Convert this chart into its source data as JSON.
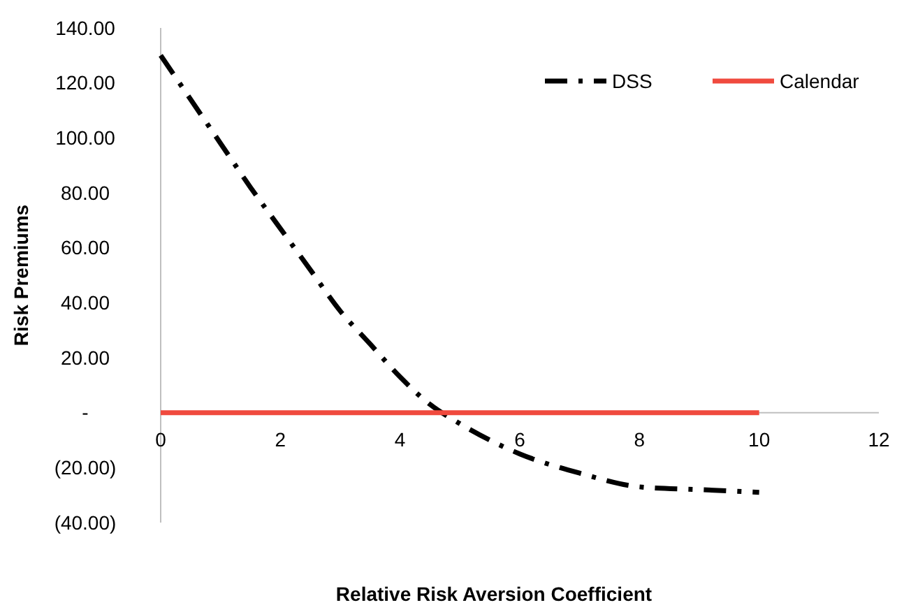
{
  "chart_data": {
    "type": "line",
    "xlabel": "Relative Risk Aversion Coefficient",
    "ylabel": "Risk Premiums",
    "xlim": [
      0,
      12
    ],
    "xticks": [
      0,
      2,
      4,
      6,
      8,
      10,
      12
    ],
    "ylim": [
      -40,
      140
    ],
    "yticks": [
      {
        "value": -40,
        "label": "(40.00)"
      },
      {
        "value": -20,
        "label": "(20.00)"
      },
      {
        "value": 0,
        "label": "-"
      },
      {
        "value": 20,
        "label": "20.00"
      },
      {
        "value": 40,
        "label": "40.00"
      },
      {
        "value": 60,
        "label": "60.00"
      },
      {
        "value": 80,
        "label": "80.00"
      },
      {
        "value": 100,
        "label": "100.00"
      },
      {
        "value": 120,
        "label": "120.00"
      },
      {
        "value": 140,
        "label": "140.00"
      }
    ],
    "grid": false,
    "legend": "top right",
    "series": [
      {
        "name": "DSS",
        "color": "#000000",
        "line_style": "dashed",
        "x": [
          0,
          0.5,
          1,
          1.5,
          2,
          2.5,
          3,
          3.5,
          4,
          4.5,
          5,
          5.5,
          6,
          7,
          8,
          9,
          10
        ],
        "values": [
          130,
          114,
          98,
          82,
          67,
          52,
          37,
          25,
          13,
          3,
          -4,
          -10,
          -15,
          -22,
          -27,
          -28,
          -29
        ]
      },
      {
        "name": "Calendar",
        "color": "#f04a3e",
        "line_style": "solid",
        "x": [
          0,
          10
        ],
        "values": [
          0,
          0
        ]
      }
    ]
  }
}
